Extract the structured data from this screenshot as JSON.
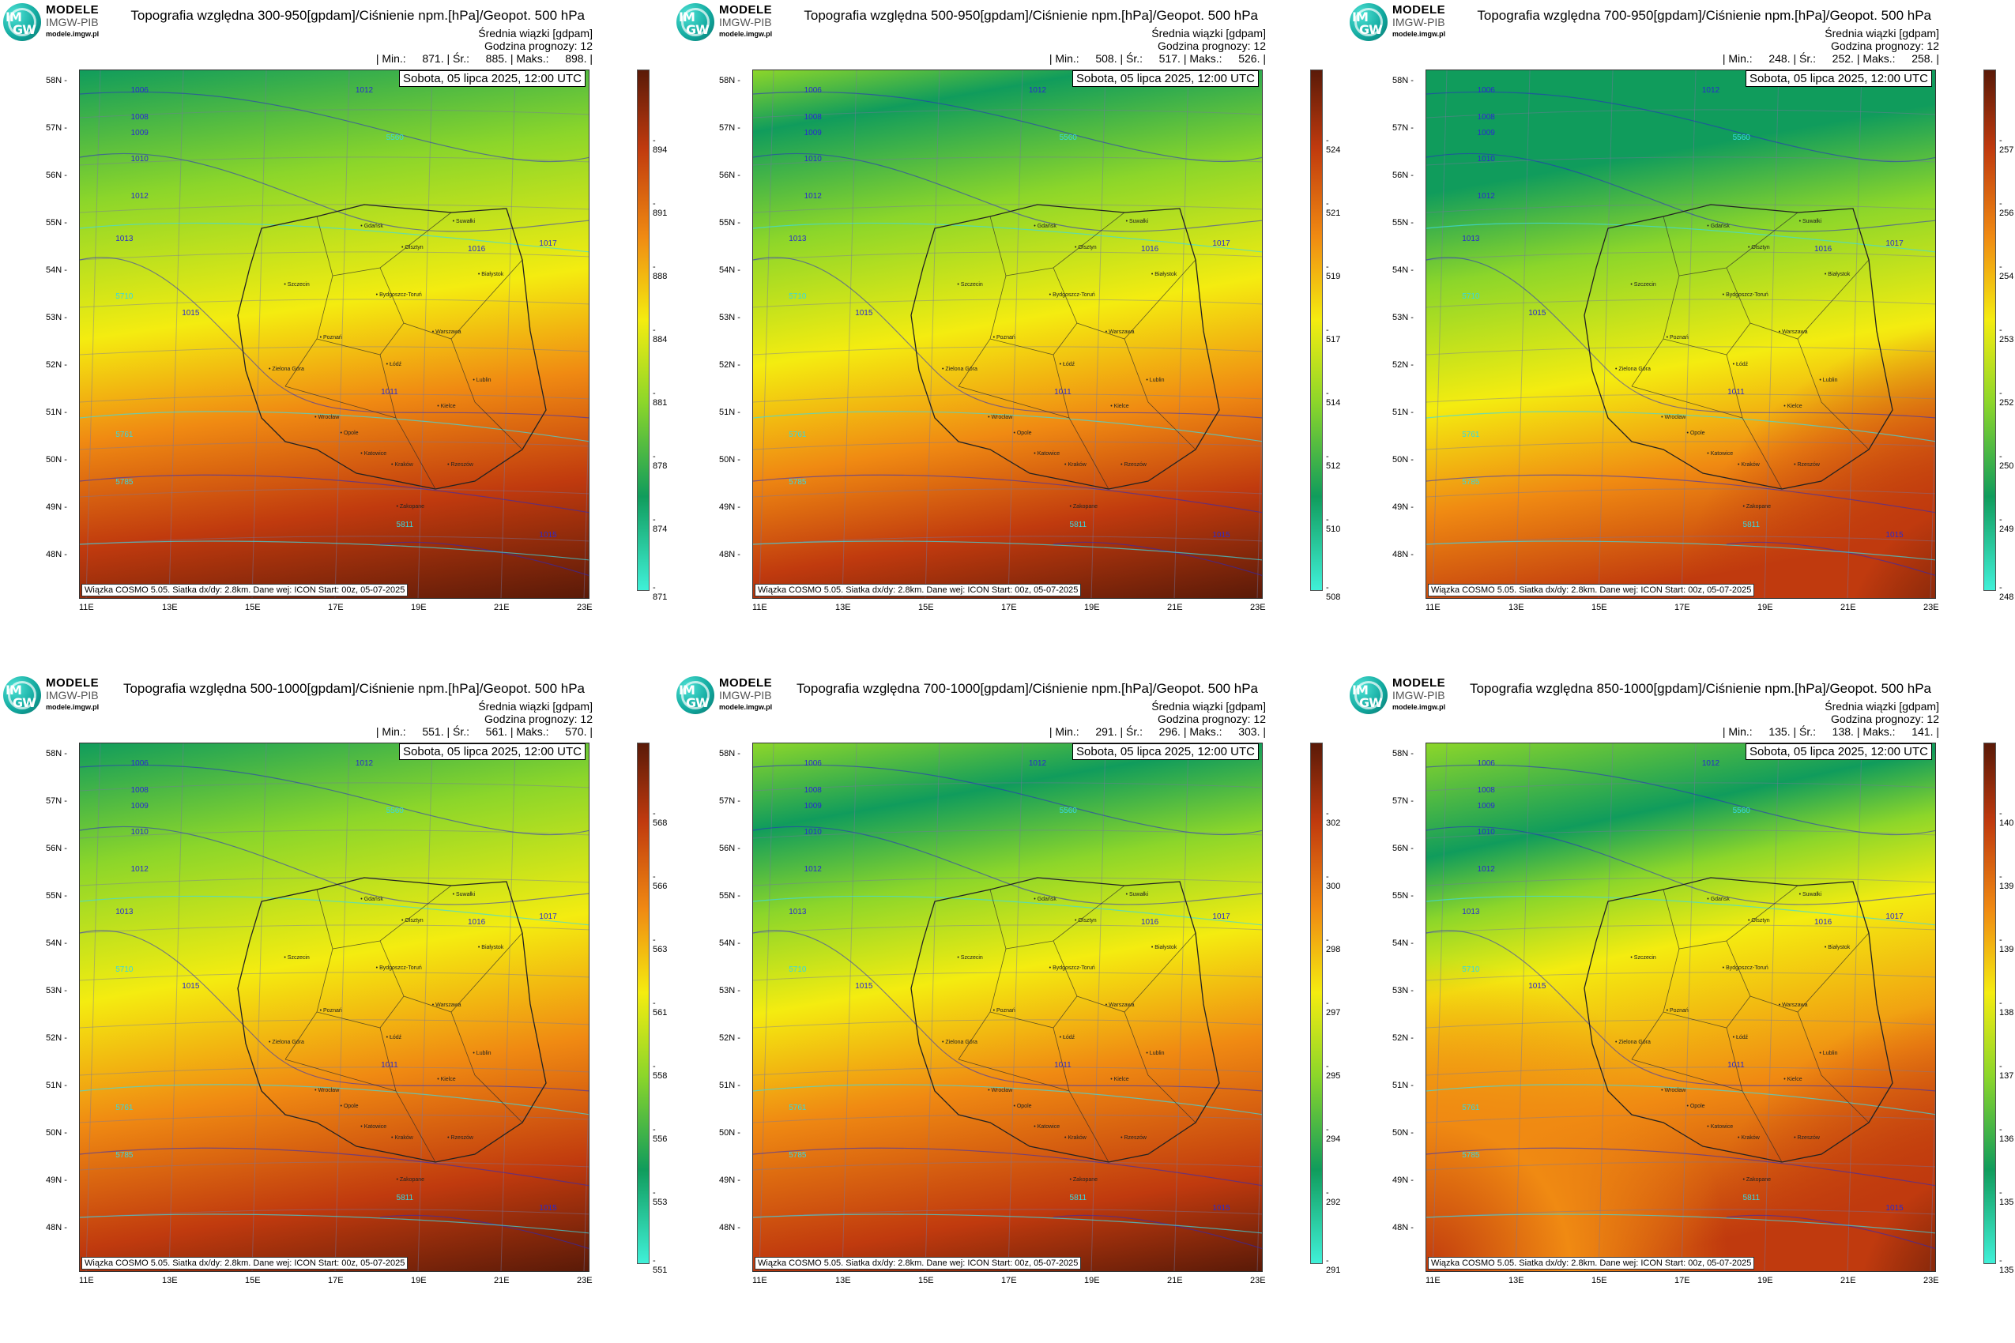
{
  "brand": {
    "line1": "MODELE",
    "line2": "IMGW-PIB",
    "line3": "modele.imgw.pl",
    "logo_top": "IM",
    "logo_bottom": "GW"
  },
  "common": {
    "subtitle1": "Średnia wiązki [gdpam]",
    "subtitle2": "Godzina prognozy: 12",
    "min_label": "| Min.:",
    "mean_label": "| Śr.:",
    "max_label": "| Maks.:",
    "end_bar": "|",
    "date": "Sobota, 05 lipca 2025, 12:00 UTC",
    "info": "Wiązka COSMO 5.05. Siatka dx/dy: 2.8km. Dane wej: ICON Start: 00z, 05-07-2025",
    "lat_labels": [
      "58N",
      "57N",
      "56N",
      "55N",
      "54N",
      "53N",
      "52N",
      "51N",
      "50N",
      "49N",
      "48N"
    ],
    "lon_labels": [
      "11E",
      "13E",
      "15E",
      "17E",
      "19E",
      "21E",
      "23E"
    ],
    "cities": [
      "Gdańsk",
      "Olsztyn",
      "Suwałki",
      "Szczecin",
      "Bydgoszcz-Toruń",
      "Białystok",
      "Poznań",
      "Warszawa",
      "Zielona Góra",
      "Łódź",
      "Lublin",
      "Wrocław",
      "Kielce",
      "Opole",
      "Katowice",
      "Kraków",
      "Rzeszów",
      "Zakopane"
    ],
    "isobars": [
      "1006",
      "1008",
      "1009",
      "1010",
      "1012",
      "1013",
      "1015",
      "1016",
      "1017",
      "1011",
      "1012",
      "1015"
    ],
    "geopot": [
      "5560",
      "5710",
      "5761",
      "5785",
      "5811"
    ]
  },
  "colors": {
    "cb_low": "#40f0d8",
    "cb_green": "#109c5c",
    "cb_lime": "#8cd62a",
    "cb_yellow": "#f4ec10",
    "cb_orange": "#f08a12",
    "cb_red": "#c03a0e",
    "cb_dark": "#5a1a08"
  },
  "panels": [
    {
      "title": "Topografia względna 300-950[gpdam]/Ciśnienie npm.[hPa]/Geopot. 500 hPa",
      "min": "871.",
      "mean": "885.",
      "max": "898.",
      "ticks": [
        "894",
        "891",
        "888",
        "884",
        "881",
        "878",
        "874",
        "871"
      ]
    },
    {
      "title": "Topografia względna 500-950[gpdam]/Ciśnienie npm.[hPa]/Geopot. 500 hPa",
      "min": "508.",
      "mean": "517.",
      "max": "526.",
      "ticks": [
        "524",
        "521",
        "519",
        "517",
        "514",
        "512",
        "510",
        "508"
      ]
    },
    {
      "title": "Topografia względna 700-950[gpdam]/Ciśnienie npm.[hPa]/Geopot. 500 hPa",
      "min": "248.",
      "mean": "252.",
      "max": "258.",
      "ticks": [
        "257",
        "256",
        "254",
        "253",
        "252",
        "250",
        "249",
        "248"
      ]
    },
    {
      "title": "Topografia względna 500-1000[gpdam]/Ciśnienie npm.[hPa]/Geopot. 500 hPa",
      "min": "551.",
      "mean": "561.",
      "max": "570.",
      "ticks": [
        "568",
        "566",
        "563",
        "561",
        "558",
        "556",
        "553",
        "551"
      ]
    },
    {
      "title": "Topografia względna 700-1000[gpdam]/Ciśnienie npm.[hPa]/Geopot. 500 hPa",
      "min": "291.",
      "mean": "296.",
      "max": "303.",
      "ticks": [
        "302",
        "300",
        "298",
        "297",
        "295",
        "294",
        "292",
        "291"
      ]
    },
    {
      "title": "Topografia względna 850-1000[gpdam]/Ciśnienie npm.[hPa]/Geopot. 500 hPa",
      "min": "135.",
      "mean": "138.",
      "max": "141.",
      "ticks": [
        "140",
        "139",
        "139",
        "138",
        "137",
        "136",
        "135",
        "135"
      ]
    }
  ]
}
